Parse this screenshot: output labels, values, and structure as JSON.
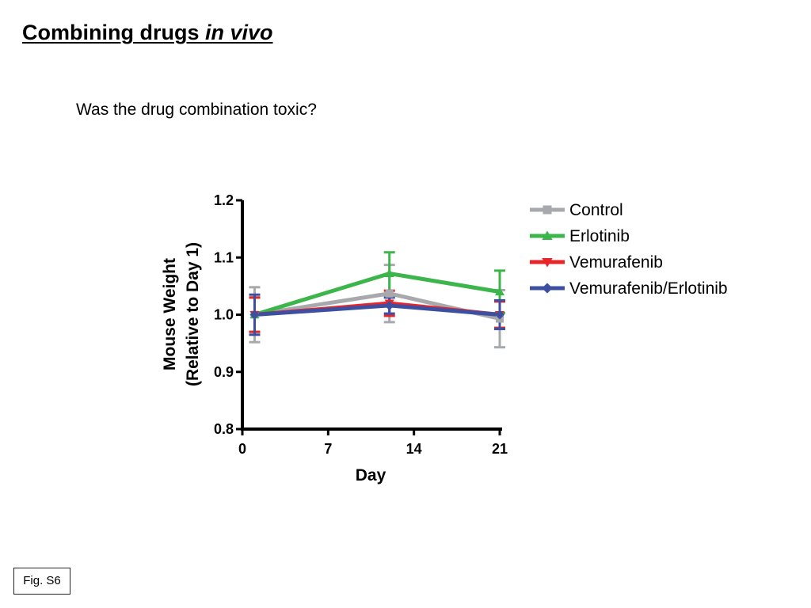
{
  "slide": {
    "title_main": "Combining drugs ",
    "title_italic": "in vivo",
    "question": "Was the drug combination toxic?",
    "fig_label": "Fig. S6"
  },
  "chart_data": {
    "type": "line",
    "xlabel": "Day",
    "ylabel_line1": "Mouse Weight",
    "ylabel_line2": "(Relative to Day 1)",
    "xlim": [
      0,
      21
    ],
    "ylim": [
      0.8,
      1.2
    ],
    "x_ticks": [
      0,
      7,
      14,
      21
    ],
    "x_tick_labels": [
      "0",
      "7",
      "14",
      "21"
    ],
    "y_ticks": [
      0.8,
      0.9,
      1.0,
      1.1,
      1.2
    ],
    "y_tick_labels": [
      "0.8",
      "0.9",
      "1.0",
      "1.1",
      "1.2"
    ],
    "grid": false,
    "legend_position": "right",
    "x": [
      1,
      12,
      21
    ],
    "series": [
      {
        "name": "Control",
        "color": "#a7a9ac",
        "marker": "square",
        "values": [
          1.0,
          1.037,
          0.993
        ],
        "err": [
          0.048,
          0.05,
          0.05
        ]
      },
      {
        "name": "Erlotinib",
        "color": "#3cb54a",
        "marker": "triangle-up",
        "values": [
          1.0,
          1.072,
          1.04
        ],
        "err": [
          0.03,
          0.037,
          0.037
        ]
      },
      {
        "name": "Vemurafenib",
        "color": "#e8262a",
        "marker": "triangle-down",
        "values": [
          1.0,
          1.02,
          1.0
        ],
        "err": [
          0.03,
          0.022,
          0.023
        ]
      },
      {
        "name": "Vemurafenib/Erlotinib",
        "color": "#3d4fa0",
        "marker": "diamond",
        "values": [
          1.0,
          1.016,
          1.0
        ],
        "err": [
          0.035,
          0.014,
          0.025
        ]
      }
    ]
  }
}
